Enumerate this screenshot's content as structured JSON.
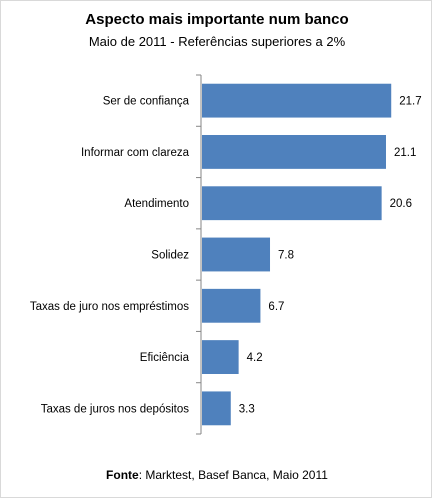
{
  "chart_data": {
    "type": "bar",
    "orientation": "horizontal",
    "title": "Aspecto mais importante num banco",
    "subtitle": "Maio de 2011  - Referências superiores a 2%",
    "categories": [
      "Ser de confiança",
      "Informar com clareza",
      "Atendimento",
      "Solidez",
      "Taxas de juro nos empréstimos",
      "Eficiência",
      "Taxas de juros nos depósitos"
    ],
    "values": [
      21.7,
      21.1,
      20.6,
      7.8,
      6.7,
      4.2,
      3.3
    ],
    "value_labels": [
      "21.7",
      "21.1",
      "20.6",
      "7.8",
      "6.7",
      "4.2",
      "3.3"
    ],
    "xlim": [
      0,
      25
    ],
    "grid": false,
    "bar_color": "#4f81bd",
    "axis_color": "#868686"
  },
  "source": {
    "label": "Fonte",
    "text": ": Marktest, Basef Banca, Maio 2011"
  }
}
